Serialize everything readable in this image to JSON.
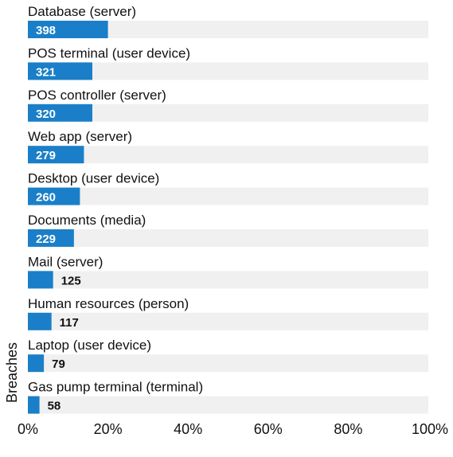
{
  "chart_data": {
    "type": "bar",
    "orientation": "horizontal",
    "categories": [
      "Database (server)",
      "POS terminal (user device)",
      "POS controller (server)",
      "Web app (server)",
      "Desktop (user device)",
      "Documents (media)",
      "Mail (server)",
      "Human resources (person)",
      "Laptop (user device)",
      "Gas pump terminal (terminal)"
    ],
    "values": [
      398,
      321,
      320,
      279,
      260,
      229,
      125,
      117,
      79,
      58
    ],
    "value_labels": [
      "398",
      "321",
      "320",
      "279",
      "260",
      "229",
      "125",
      "117",
      "79",
      "58"
    ],
    "percent_values": [
      20,
      16.1,
      16.1,
      14,
      13,
      11.5,
      6.3,
      5.9,
      4,
      2.9
    ],
    "ylabel": "Breaches",
    "xlim": [
      0,
      100
    ],
    "x_ticks": [
      "0%",
      "20%",
      "40%",
      "60%",
      "80%",
      "100%"
    ],
    "grid": false,
    "colors": {
      "bar": "#1a7fc8",
      "track": "#f0f0f0",
      "text": "#111111"
    }
  }
}
